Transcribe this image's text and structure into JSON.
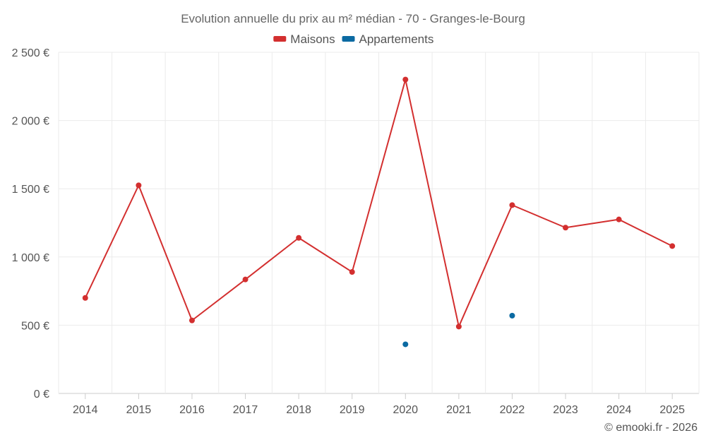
{
  "chart_data": {
    "type": "line",
    "title": "Evolution annuelle du prix au m² médian - 70 - Granges-le-Bourg",
    "categories": [
      "2014",
      "2015",
      "2016",
      "2017",
      "2018",
      "2019",
      "2020",
      "2021",
      "2022",
      "2023",
      "2024",
      "2025"
    ],
    "series": [
      {
        "name": "Maisons",
        "color": "#d32f2f",
        "values": [
          700,
          1525,
          535,
          835,
          1140,
          890,
          2300,
          490,
          1380,
          1215,
          1275,
          1080
        ]
      },
      {
        "name": "Appartements",
        "color": "#0b6aa2",
        "values": [
          null,
          null,
          null,
          null,
          null,
          null,
          360,
          null,
          570,
          null,
          null,
          null
        ]
      }
    ],
    "ylim": [
      0,
      2500
    ],
    "yticks": [
      0,
      500,
      1000,
      1500,
      2000,
      2500
    ],
    "ytick_labels": [
      "0 €",
      "500 €",
      "1 000 €",
      "1 500 €",
      "2 000 €",
      "2 500 €"
    ],
    "xlabel": "",
    "ylabel": "",
    "grid": true,
    "legend_position": "top-center"
  },
  "credit": "© emooki.fr - 2026"
}
